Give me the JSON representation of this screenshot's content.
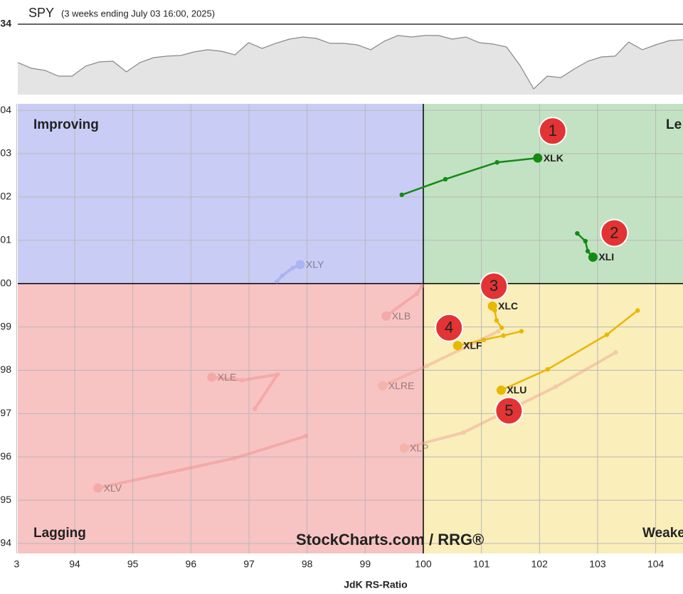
{
  "chart_data": [
    {
      "type": "area",
      "title": "SPY",
      "subtitle": "(3 weeks ending July 03 16:00, 2025)",
      "values": [
        610.6,
        607.1,
        605.8,
        602.3,
        602.3,
        608.4,
        611.0,
        611.4,
        604.9,
        610.6,
        613.6,
        614.5,
        614.9,
        617.1,
        618.4,
        617.5,
        615.3,
        622.7,
        619.2,
        622.3,
        624.9,
        626.2,
        625.3,
        622.3,
        622.3,
        621.4,
        618.4,
        623.6,
        627.1,
        626.2,
        627.1,
        627.1,
        624.9,
        626.2,
        622.7,
        621.9,
        620.1,
        608.8,
        594.5,
        602.3,
        601.4,
        606.7,
        611.4,
        614.0,
        614.5,
        623.1,
        618.4,
        621.4,
        624.0,
        624.5
      ],
      "color": "#888888",
      "fill": "#e4e4e4",
      "ylim": [
        591,
        634
      ],
      "yticks": [
        {
          "value": 634,
          "label": "34"
        }
      ]
    },
    {
      "type": "scatter",
      "x_label": "JdK RS-Ratio",
      "watermark": "StockCharts.com / RRG®",
      "xlim": [
        93.02,
        104.47
      ],
      "ylim": [
        93.77,
        104.15
      ],
      "xticks": [
        {
          "value": 93,
          "label": "3"
        },
        94,
        95,
        96,
        97,
        98,
        99,
        100,
        101,
        102,
        103,
        104
      ],
      "yticks": [
        {
          "value": 94,
          "label": "94"
        },
        95,
        96,
        97,
        98,
        99,
        {
          "value": 100,
          "label": "00"
        },
        {
          "value": 101,
          "label": "01"
        },
        {
          "value": 102,
          "label": "02"
        },
        {
          "value": 103,
          "label": "03"
        },
        {
          "value": 104,
          "label": "04"
        }
      ],
      "grid": true,
      "quadrant_center": [
        100,
        100
      ],
      "quadrants": [
        {
          "name": "Improving",
          "color": "#c9cdf5",
          "text_color": "#3a4bc0"
        },
        {
          "name": "Le",
          "color": "#c3e2c3",
          "text_color": "#2a8a2a"
        },
        {
          "name": "Weake",
          "color": "#faeebb",
          "text_color": "#e0b000"
        },
        {
          "name": "Lagging",
          "color": "#f8c3c3",
          "text_color": "#e02020"
        }
      ],
      "series": [
        {
          "name": "XLK",
          "color": "#148a14",
          "opacity": 1,
          "badge": "1",
          "x": [
            99.63,
            100.38,
            101.27,
            101.97
          ],
          "values": [
            102.05,
            102.41,
            102.8,
            102.9
          ]
        },
        {
          "name": "XLI",
          "color": "#148a14",
          "opacity": 1,
          "badge": "2",
          "x": [
            102.65,
            102.79,
            102.83,
            102.92
          ],
          "values": [
            101.16,
            100.98,
            100.75,
            100.61
          ]
        },
        {
          "name": "XLC",
          "color": "#e8b800",
          "opacity": 1,
          "badge": "3",
          "x": [
            101.35,
            101.26,
            101.23,
            101.19
          ],
          "values": [
            98.98,
            99.15,
            99.38,
            99.48
          ]
        },
        {
          "name": "XLF",
          "color": "#e8b800",
          "opacity": 1,
          "badge": "4",
          "x": [
            101.69,
            101.38,
            101.04,
            100.59
          ],
          "values": [
            98.9,
            98.8,
            98.7,
            98.57
          ]
        },
        {
          "name": "XLU",
          "color": "#e8b800",
          "opacity": 1,
          "badge": "5",
          "x": [
            103.69,
            103.16,
            102.14,
            101.34
          ],
          "values": [
            99.38,
            98.82,
            98.02,
            97.54
          ]
        },
        {
          "name": "XLY",
          "color": "#8a96f0",
          "opacity": 0.45,
          "x": [
            97.48,
            97.57,
            97.75,
            97.88
          ],
          "values": [
            100.05,
            100.18,
            100.36,
            100.44
          ]
        },
        {
          "name": "XLB",
          "color": "#f08a8a",
          "opacity": 0.45,
          "x": [
            99.98,
            99.89,
            99.36
          ],
          "values": [
            99.95,
            99.77,
            99.25
          ]
        },
        {
          "name": "XLE",
          "color": "#f08a8a",
          "opacity": 0.45,
          "x": [
            97.1,
            97.49,
            96.88,
            96.36
          ],
          "values": [
            97.11,
            97.9,
            97.77,
            97.84
          ]
        },
        {
          "name": "XLRE",
          "color": "#f0a090",
          "opacity": 0.45,
          "x": [
            101.29,
            100.06,
            99.3
          ],
          "values": [
            98.9,
            98.1,
            97.64
          ]
        },
        {
          "name": "XLV",
          "color": "#f08a8a",
          "opacity": 0.45,
          "x": [
            97.98,
            96.75,
            94.4
          ],
          "values": [
            96.48,
            95.97,
            95.28
          ]
        },
        {
          "name": "XLP",
          "color": "#f0a090",
          "opacity": 0.45,
          "x": [
            103.31,
            102.28,
            100.69,
            99.67
          ],
          "values": [
            98.41,
            97.62,
            96.56,
            96.2
          ]
        }
      ]
    }
  ]
}
